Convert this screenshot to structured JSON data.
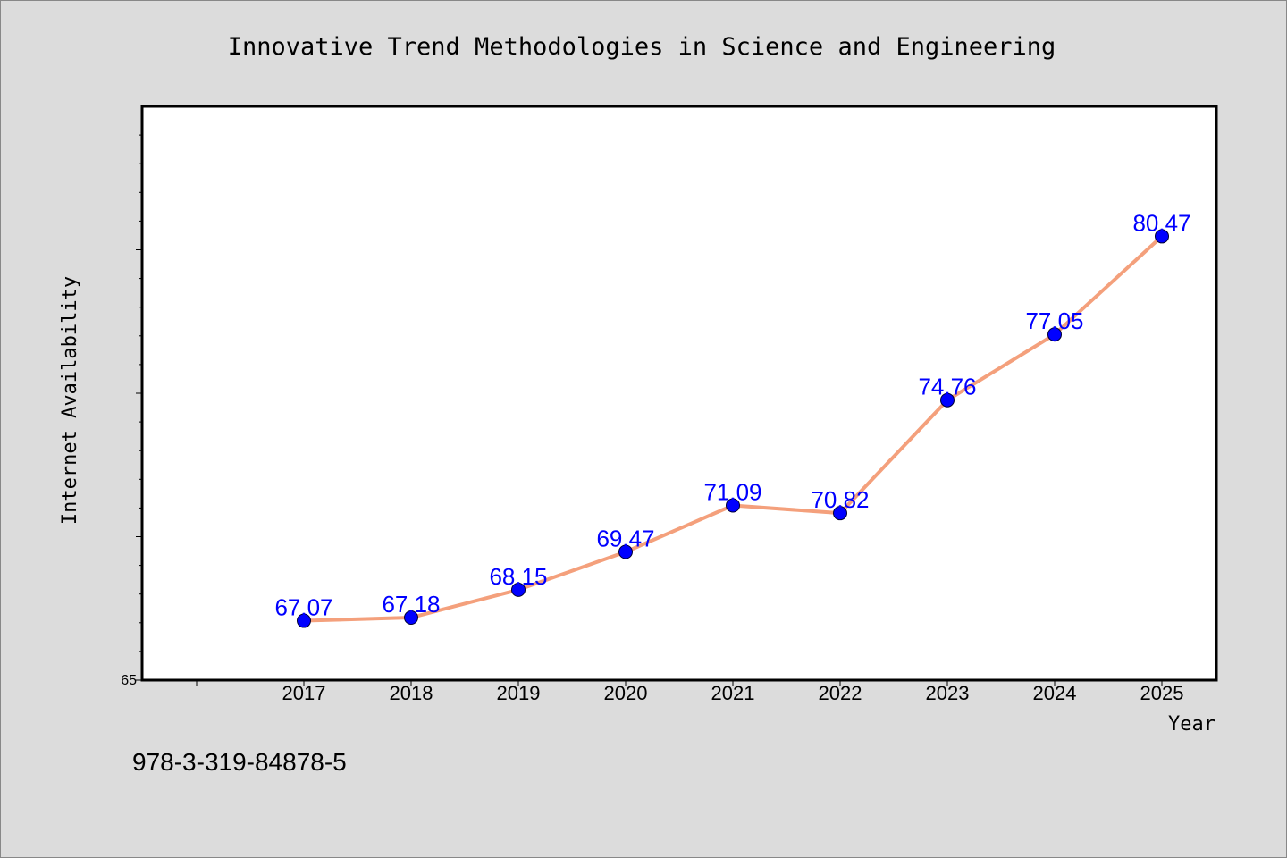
{
  "chart_data": {
    "type": "line",
    "title": "Innovative Trend Methodologies in Science and Engineering",
    "xlabel": "Year",
    "ylabel": "Internet Availability",
    "categories": [
      "2017",
      "2018",
      "2019",
      "2020",
      "2021",
      "2022",
      "2023",
      "2024",
      "2025"
    ],
    "series": [
      {
        "values": [
          67.07,
          67.18,
          68.15,
          69.47,
          71.09,
          70.82,
          74.76,
          77.05,
          80.47
        ],
        "labels": [
          "67.07",
          "67.18",
          "68.15",
          "69.47",
          "71.09",
          "70.82",
          "74.76",
          "77.05",
          "80.47"
        ],
        "line_color": "#f4a07c",
        "marker_color": "#0000ff"
      }
    ],
    "ylim": [
      65,
      85
    ],
    "yticks_labeled": [
      "65"
    ],
    "grid": false,
    "legend": "none"
  },
  "footer": {
    "isbn": "978-3-319-84878-5"
  },
  "colors": {
    "background": "#dcdcdc",
    "plot_background": "#ffffff",
    "line": "#f4a07c",
    "marker": "#0000ff",
    "data_label": "#0000ff"
  }
}
